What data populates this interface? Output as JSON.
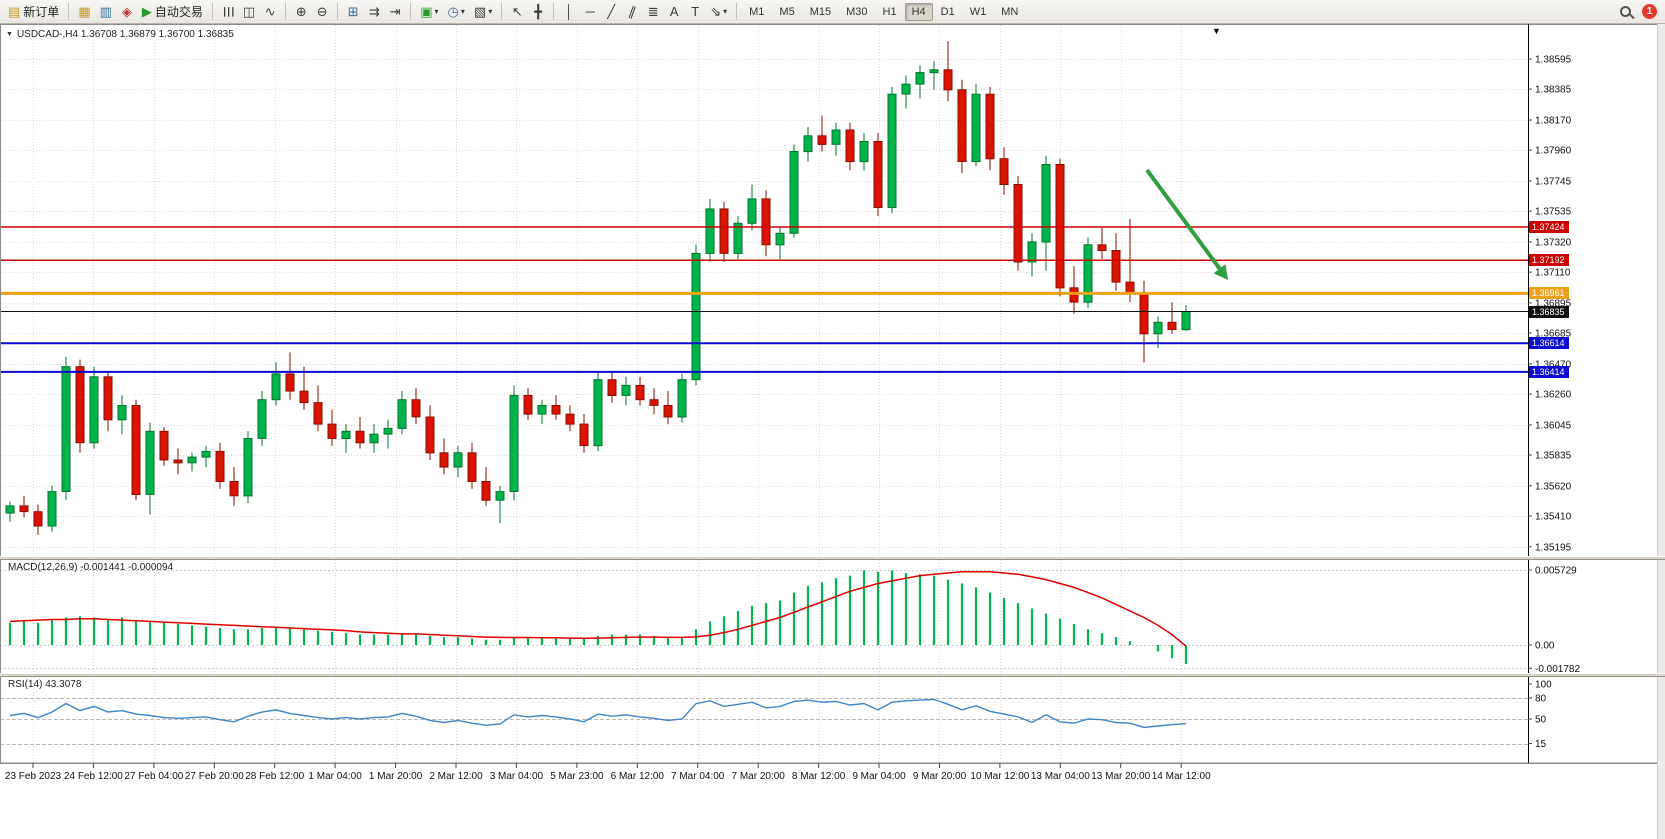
{
  "toolbar": {
    "new_order_label": "新订单",
    "auto_trading_label": "自动交易",
    "timeframes": [
      "M1",
      "M5",
      "M15",
      "M30",
      "H1",
      "H4",
      "D1",
      "W1",
      "MN"
    ],
    "active_timeframe": "H4",
    "notification_count": "1"
  },
  "icons": {
    "new_order": "▤",
    "market_watch": "▦",
    "data_window": "▥",
    "navigator": "◈",
    "auto_trading": "▶",
    "bar_chart": "☰",
    "candle_chart": "◫",
    "line_chart": "∿",
    "zoom_in": "⊕",
    "zoom_out": "⊖",
    "tile_windows": "⊞",
    "auto_scroll": "⇉",
    "chart_shift": "⇥",
    "new_chart": "▣",
    "periods_menu": "◷",
    "templates_menu": "▧",
    "cursor": "↖",
    "crosshair": "╋",
    "vertical_line": "│",
    "horizontal_line": "─",
    "trendline": "╱",
    "channel": "∥",
    "fibonacci": "≣",
    "text_tool": "A",
    "label_tool": "T",
    "arrows_menu": "⇘",
    "caret": "▾",
    "collapse": "▼",
    "scroll_anchor": "▼"
  },
  "chart_data": {
    "type": "candlestick",
    "title": "USDCAD-,H4 1.36708 1.36879 1.36700 1.36835",
    "symbol": "USDCAD-",
    "timeframe": "H4",
    "last_ohlc": {
      "open": "1.36708",
      "high": "1.36879",
      "low": "1.36700",
      "close": "1.36835"
    },
    "colors": {
      "up": "#00b34a",
      "down": "#da1400",
      "up_border": "#00752c",
      "down_border": "#8c0d00",
      "bg": "#ffffff"
    },
    "price_axis_labels": [
      "1.38595",
      "1.38385",
      "1.38170",
      "1.37960",
      "1.37745",
      "1.37535",
      "1.37320",
      "1.37110",
      "1.36895",
      "1.36685",
      "1.36470",
      "1.36260",
      "1.36045",
      "1.35835",
      "1.35620",
      "1.35410",
      "1.35195"
    ],
    "time_axis_labels": [
      "23 Feb 2023",
      "24 Feb 12:00",
      "27 Feb 04:00",
      "27 Feb 20:00",
      "28 Feb 12:00",
      "1 Mar 04:00",
      "1 Mar 20:00",
      "2 Mar 12:00",
      "3 Mar 04:00",
      "5 Mar 23:00",
      "6 Mar 12:00",
      "7 Mar 04:00",
      "7 Mar 20:00",
      "8 Mar 12:00",
      "9 Mar 04:00",
      "9 Mar 20:00",
      "10 Mar 12:00",
      "13 Mar 04:00",
      "13 Mar 20:00",
      "14 Mar 12:00"
    ],
    "hlines": [
      {
        "name": "resistance-line-1",
        "label": "1.37424",
        "value": 1.37424,
        "color": "#cc0000",
        "width": 1.5
      },
      {
        "name": "resistance-line-2",
        "label": "1.37192",
        "value": 1.37192,
        "color": "#cc0000",
        "width": 1.5
      },
      {
        "name": "pivot-line",
        "label": "1.36961",
        "value": 1.36961,
        "color": "#eda118",
        "width": 3
      },
      {
        "name": "bid-price-line",
        "label": "1.36835",
        "value": 1.36835,
        "color": "#111111",
        "width": 1
      },
      {
        "name": "support-line-1",
        "label": "1.36614",
        "value": 1.36614,
        "color": "#0a0ad0",
        "width": 2
      },
      {
        "name": "support-line-2",
        "label": "1.36414",
        "value": 1.36414,
        "color": "#0a0ad0",
        "width": 2
      }
    ],
    "arrow": {
      "color": "#2f9e3f",
      "direction": "down-right"
    },
    "candles": [
      [
        1.3543,
        1.3551,
        1.3537,
        1.3548
      ],
      [
        1.3548,
        1.3555,
        1.354,
        1.3544
      ],
      [
        1.3544,
        1.3549,
        1.3528,
        1.3534
      ],
      [
        1.3534,
        1.3562,
        1.353,
        1.3558
      ],
      [
        1.3558,
        1.3652,
        1.3552,
        1.3645
      ],
      [
        1.3645,
        1.365,
        1.3585,
        1.3592
      ],
      [
        1.3592,
        1.3645,
        1.3588,
        1.3638
      ],
      [
        1.3638,
        1.3642,
        1.36,
        1.3608
      ],
      [
        1.3608,
        1.3625,
        1.3598,
        1.3618
      ],
      [
        1.3618,
        1.3622,
        1.3552,
        1.3556
      ],
      [
        1.3556,
        1.3606,
        1.3542,
        1.36
      ],
      [
        1.36,
        1.3603,
        1.3576,
        1.358
      ],
      [
        1.358,
        1.3588,
        1.357,
        1.3578
      ],
      [
        1.3578,
        1.3585,
        1.3572,
        1.3582
      ],
      [
        1.3582,
        1.359,
        1.3575,
        1.3586
      ],
      [
        1.3586,
        1.3592,
        1.356,
        1.3565
      ],
      [
        1.3565,
        1.3575,
        1.3548,
        1.3555
      ],
      [
        1.3555,
        1.36,
        1.355,
        1.3595
      ],
      [
        1.3595,
        1.3628,
        1.359,
        1.3622
      ],
      [
        1.3622,
        1.3648,
        1.3618,
        1.364
      ],
      [
        1.364,
        1.3655,
        1.3622,
        1.3628
      ],
      [
        1.3628,
        1.3645,
        1.3615,
        1.362
      ],
      [
        1.362,
        1.3632,
        1.36,
        1.3605
      ],
      [
        1.3605,
        1.3615,
        1.359,
        1.3595
      ],
      [
        1.3595,
        1.3605,
        1.3585,
        1.36
      ],
      [
        1.36,
        1.361,
        1.3588,
        1.3592
      ],
      [
        1.3592,
        1.3605,
        1.3585,
        1.3598
      ],
      [
        1.3598,
        1.3608,
        1.3588,
        1.3602
      ],
      [
        1.3602,
        1.3628,
        1.3598,
        1.3622
      ],
      [
        1.3622,
        1.363,
        1.3605,
        1.361
      ],
      [
        1.361,
        1.3618,
        1.358,
        1.3585
      ],
      [
        1.3585,
        1.3595,
        1.357,
        1.3575
      ],
      [
        1.3575,
        1.359,
        1.3568,
        1.3585
      ],
      [
        1.3585,
        1.3592,
        1.356,
        1.3565
      ],
      [
        1.3565,
        1.3575,
        1.3548,
        1.3552
      ],
      [
        1.3552,
        1.3562,
        1.3536,
        1.3558
      ],
      [
        1.3558,
        1.3632,
        1.3552,
        1.3625
      ],
      [
        1.3625,
        1.363,
        1.3608,
        1.3612
      ],
      [
        1.3612,
        1.3622,
        1.3605,
        1.3618
      ],
      [
        1.3618,
        1.3625,
        1.3608,
        1.3612
      ],
      [
        1.3612,
        1.3618,
        1.36,
        1.3605
      ],
      [
        1.3605,
        1.3612,
        1.3585,
        1.359
      ],
      [
        1.359,
        1.3642,
        1.3586,
        1.3636
      ],
      [
        1.3636,
        1.3642,
        1.362,
        1.3625
      ],
      [
        1.3625,
        1.3638,
        1.3618,
        1.3632
      ],
      [
        1.3632,
        1.3638,
        1.3618,
        1.3622
      ],
      [
        1.3622,
        1.363,
        1.3612,
        1.3618
      ],
      [
        1.3618,
        1.3628,
        1.3605,
        1.361
      ],
      [
        1.361,
        1.364,
        1.3606,
        1.3636
      ],
      [
        1.3636,
        1.373,
        1.3632,
        1.3724
      ],
      [
        1.3724,
        1.3762,
        1.3718,
        1.3755
      ],
      [
        1.3755,
        1.376,
        1.3718,
        1.3724
      ],
      [
        1.3724,
        1.375,
        1.372,
        1.3745
      ],
      [
        1.3745,
        1.3772,
        1.374,
        1.3762
      ],
      [
        1.3762,
        1.3768,
        1.3722,
        1.373
      ],
      [
        1.373,
        1.3742,
        1.372,
        1.3738
      ],
      [
        1.3738,
        1.38,
        1.3735,
        1.3795
      ],
      [
        1.3795,
        1.3812,
        1.3788,
        1.3806
      ],
      [
        1.3806,
        1.382,
        1.3795,
        1.38
      ],
      [
        1.38,
        1.3815,
        1.3792,
        1.381
      ],
      [
        1.381,
        1.3815,
        1.3782,
        1.3788
      ],
      [
        1.3788,
        1.3808,
        1.3782,
        1.3802
      ],
      [
        1.3802,
        1.3808,
        1.375,
        1.3756
      ],
      [
        1.3756,
        1.384,
        1.3752,
        1.3835
      ],
      [
        1.3835,
        1.3848,
        1.3825,
        1.3842
      ],
      [
        1.3842,
        1.3855,
        1.3832,
        1.385
      ],
      [
        1.385,
        1.3858,
        1.3838,
        1.3852
      ],
      [
        1.3852,
        1.3872,
        1.383,
        1.3838
      ],
      [
        1.3838,
        1.3845,
        1.378,
        1.3788
      ],
      [
        1.3788,
        1.3842,
        1.3785,
        1.3835
      ],
      [
        1.3835,
        1.384,
        1.3782,
        1.379
      ],
      [
        1.379,
        1.3798,
        1.3765,
        1.3772
      ],
      [
        1.3772,
        1.3778,
        1.3712,
        1.3718
      ],
      [
        1.3718,
        1.3738,
        1.3708,
        1.3732
      ],
      [
        1.3732,
        1.3792,
        1.3712,
        1.3786
      ],
      [
        1.3786,
        1.379,
        1.3694,
        1.37
      ],
      [
        1.37,
        1.3715,
        1.3682,
        1.369
      ],
      [
        1.369,
        1.3735,
        1.3686,
        1.373
      ],
      [
        1.373,
        1.3742,
        1.372,
        1.3726
      ],
      [
        1.3726,
        1.3738,
        1.3698,
        1.3704
      ],
      [
        1.3704,
        1.3748,
        1.369,
        1.3696
      ],
      [
        1.3696,
        1.3705,
        1.3648,
        1.3668
      ],
      [
        1.3668,
        1.368,
        1.3658,
        1.3676
      ],
      [
        1.3676,
        1.369,
        1.3668,
        1.3671
      ],
      [
        1.36708,
        1.36879,
        1.367,
        1.36835
      ]
    ],
    "indicators": {
      "macd": {
        "label": "MACD(12,26,9) -0.001441 -0.000094",
        "axis_labels": [
          "0.005729",
          "0.00",
          "-0.001782"
        ],
        "histogram_color": "#00b94e",
        "signal_color": "#e00000",
        "histogram": [
          0.0017,
          0.0018,
          0.0017,
          0.0019,
          0.0021,
          0.0022,
          0.0021,
          0.002,
          0.0021,
          0.0019,
          0.0018,
          0.0017,
          0.0016,
          0.0015,
          0.0014,
          0.0013,
          0.0012,
          0.0012,
          0.0013,
          0.0014,
          0.0013,
          0.0012,
          0.0011,
          0.001,
          0.0009,
          0.0008,
          0.0008,
          0.0008,
          0.0009,
          0.0008,
          0.0007,
          0.0006,
          0.0006,
          0.0005,
          0.0004,
          0.0004,
          0.0006,
          0.0006,
          0.0006,
          0.0006,
          0.0005,
          0.0005,
          0.0007,
          0.0008,
          0.0008,
          0.0008,
          0.0007,
          0.0006,
          0.0006,
          0.0012,
          0.0018,
          0.0022,
          0.0026,
          0.003,
          0.0032,
          0.0034,
          0.004,
          0.0045,
          0.0048,
          0.0051,
          0.0053,
          0.0057,
          0.0056,
          0.0057,
          0.0055,
          0.0054,
          0.0053,
          0.005,
          0.0047,
          0.0044,
          0.004,
          0.0036,
          0.0032,
          0.0028,
          0.0024,
          0.002,
          0.0016,
          0.0012,
          0.0009,
          0.0006,
          0.0003,
          0.0,
          -0.0005,
          -0.001,
          -0.001441
        ],
        "signal": [
          0.0018,
          0.00185,
          0.0019,
          0.00195,
          0.00195,
          0.002,
          0.002,
          0.00195,
          0.0019,
          0.00185,
          0.0018,
          0.00175,
          0.0017,
          0.00165,
          0.0016,
          0.00155,
          0.0015,
          0.00145,
          0.0014,
          0.00135,
          0.0013,
          0.00125,
          0.0012,
          0.00115,
          0.0011,
          0.001,
          0.00095,
          0.0009,
          0.00085,
          0.00085,
          0.0008,
          0.00075,
          0.0007,
          0.00065,
          0.0006,
          0.00058,
          0.00057,
          0.00057,
          0.00056,
          0.00055,
          0.00053,
          0.00052,
          0.00053,
          0.00055,
          0.00058,
          0.0006,
          0.0006,
          0.00058,
          0.00058,
          0.00062,
          0.00075,
          0.00095,
          0.0012,
          0.0015,
          0.0018,
          0.0021,
          0.0025,
          0.0029,
          0.0033,
          0.0037,
          0.0041,
          0.0044,
          0.0047,
          0.0049,
          0.0051,
          0.0053,
          0.0054,
          0.0055,
          0.0056,
          0.0056,
          0.0056,
          0.0055,
          0.0054,
          0.0052,
          0.005,
          0.0047,
          0.0044,
          0.004,
          0.0036,
          0.0031,
          0.0026,
          0.0021,
          0.0015,
          0.0008,
          -9.4e-05
        ]
      },
      "rsi": {
        "label": "RSI(14) 43.3078",
        "axis_labels": [
          "100",
          "80",
          "50",
          "15"
        ],
        "levels": [
          80,
          50,
          15
        ],
        "line_color": "#3f85c6",
        "values": [
          55,
          58,
          52,
          60,
          72,
          62,
          68,
          60,
          62,
          57,
          55,
          52,
          51,
          52,
          53,
          49,
          46,
          54,
          60,
          63,
          58,
          55,
          52,
          50,
          52,
          50,
          52,
          53,
          58,
          54,
          48,
          45,
          48,
          44,
          41,
          43,
          56,
          53,
          55,
          53,
          50,
          46,
          57,
          54,
          56,
          53,
          51,
          48,
          50,
          72,
          76,
          68,
          71,
          74,
          66,
          68,
          75,
          77,
          74,
          75,
          70,
          72,
          63,
          74,
          76,
          77,
          78,
          71,
          63,
          69,
          61,
          57,
          53,
          45,
          56,
          46,
          44,
          50,
          49,
          45,
          44,
          38,
          40,
          42,
          43.3078
        ]
      }
    }
  }
}
